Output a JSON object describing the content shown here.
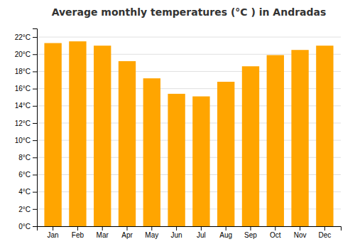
{
  "chart_data": {
    "type": "bar",
    "title": "Average monthly temperatures (°C ) in Andradas",
    "categories": [
      "Jan",
      "Feb",
      "Mar",
      "Apr",
      "May",
      "Jun",
      "Jul",
      "Aug",
      "Sep",
      "Oct",
      "Nov",
      "Dec"
    ],
    "values": [
      21.3,
      21.5,
      21.0,
      19.2,
      17.2,
      15.4,
      15.1,
      16.8,
      18.6,
      19.9,
      20.5,
      21.0
    ],
    "color": "#FFA500",
    "ylim": [
      0,
      23
    ],
    "yticks": [
      {
        "value": 0,
        "label": "0°C"
      },
      {
        "value": 2,
        "label": "2°C"
      },
      {
        "value": 4,
        "label": "4°C"
      },
      {
        "value": 6,
        "label": "6°C"
      },
      {
        "value": 8,
        "label": "8°C"
      },
      {
        "value": 10,
        "label": "10°C"
      },
      {
        "value": 12,
        "label": "12°C"
      },
      {
        "value": 14,
        "label": "14°C"
      },
      {
        "value": 16,
        "label": "16°C"
      },
      {
        "value": 18,
        "label": "18°C"
      },
      {
        "value": 20,
        "label": "20°C"
      },
      {
        "value": 22,
        "label": "22°C"
      }
    ],
    "grid": true
  }
}
